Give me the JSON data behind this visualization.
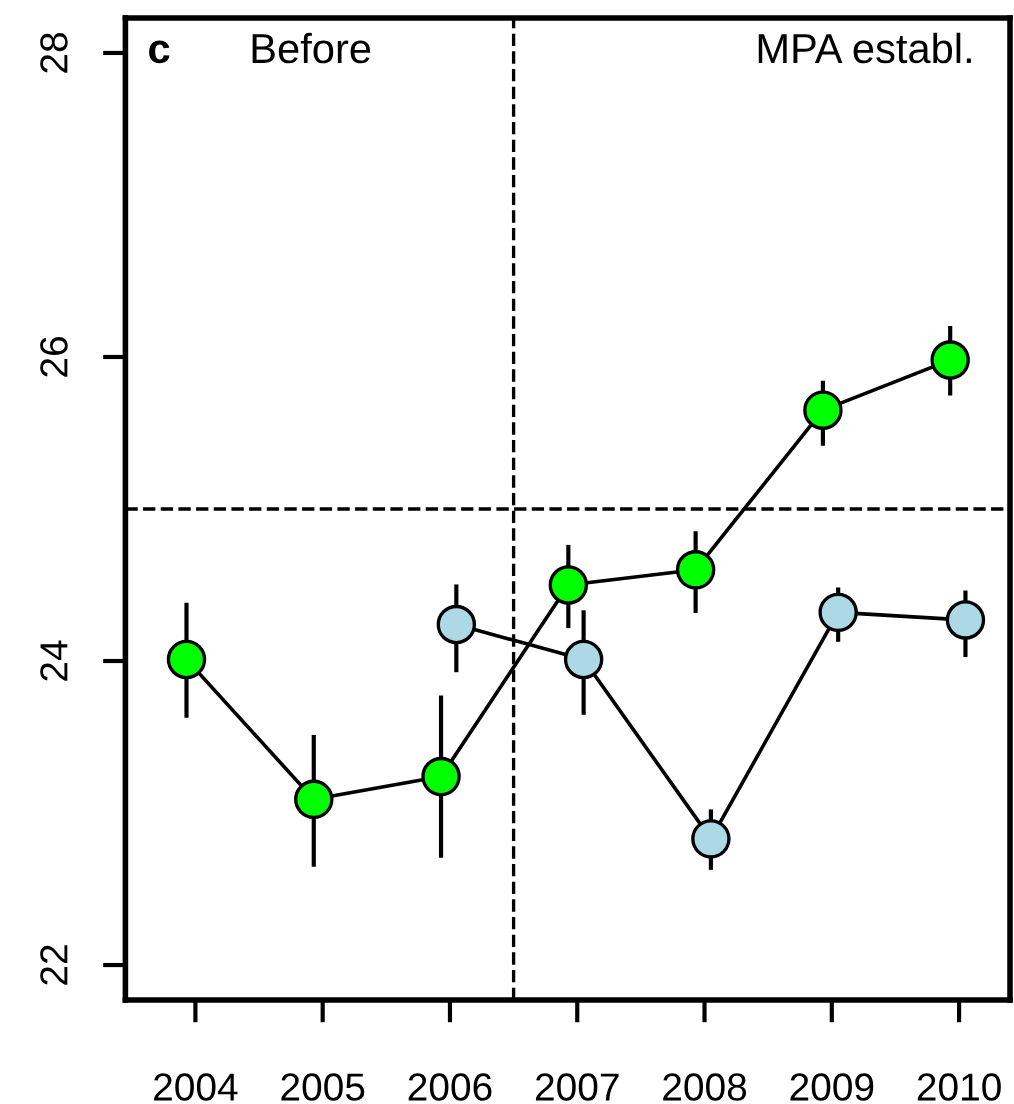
{
  "chart_data": {
    "type": "line",
    "series": [
      {
        "color": "#00ff00",
        "x": [
          2003.93,
          2004.93,
          2005.93,
          2006.93,
          2007.93,
          2008.93,
          2009.93
        ],
        "values": [
          24.01,
          23.09,
          23.24,
          24.5,
          24.6,
          25.65,
          25.98
        ],
        "errors": [
          [
            23.64,
            24.37
          ],
          [
            22.66,
            23.5
          ],
          [
            22.72,
            23.76
          ],
          [
            24.23,
            24.75
          ],
          [
            24.33,
            24.84
          ],
          [
            25.43,
            25.83
          ],
          [
            25.76,
            26.19
          ]
        ]
      },
      {
        "color": "#add8e6",
        "x": [
          2006.05,
          2007.05,
          2008.05,
          2009.05,
          2010.05
        ],
        "values": [
          24.24,
          24.01,
          22.83,
          24.32,
          24.27
        ],
        "errors": [
          [
            23.94,
            24.49
          ],
          [
            23.66,
            24.32
          ],
          [
            22.64,
            23.01
          ],
          [
            24.14,
            24.47
          ],
          [
            24.04,
            24.45
          ]
        ]
      }
    ],
    "xlim": [
      2003.45,
      2010.4
    ],
    "xticks": [
      2004,
      2005,
      2006,
      2007,
      2008,
      2009,
      2010
    ],
    "ylim": [
      21.77,
      28.23
    ],
    "yticks": [
      22,
      24,
      26,
      28
    ],
    "ref_lines": [
      {
        "axis": "x",
        "value": 2006.5,
        "line_style": "dashed"
      },
      {
        "axis": "y",
        "value": 25.0,
        "line_style": "dashed"
      }
    ],
    "annotations": [
      "c",
      "Before",
      "MPA establ."
    ],
    "marker": "circle",
    "line_style": "solid",
    "grid": false,
    "legend": false
  }
}
